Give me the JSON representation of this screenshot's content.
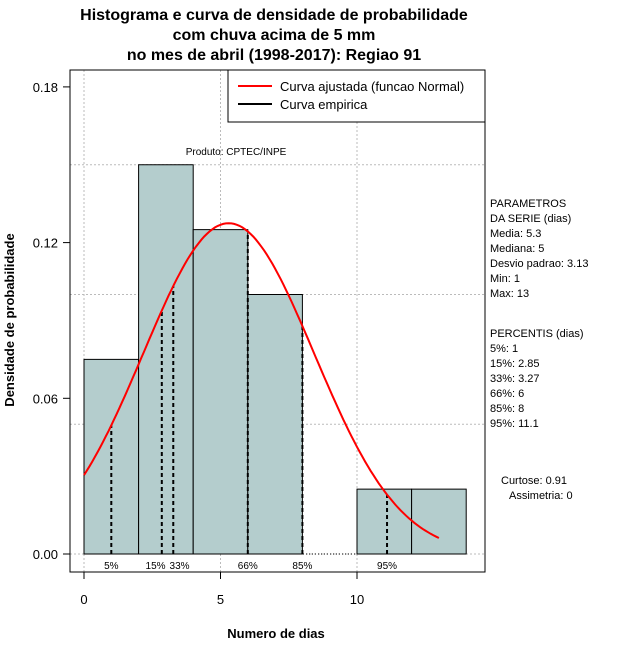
{
  "chart_data": {
    "type": "bar",
    "title": [
      "Histograma e curva de densidade de probabilidade",
      "com chuva acima de 5 mm",
      "no mes de abril (1998-2017): Regiao 91"
    ],
    "xlabel": "Numero de dias",
    "ylabel": "Densidade de probabilidade",
    "xlim": [
      -0.5,
      14.7
    ],
    "ylim": [
      -0.008,
      0.183
    ],
    "xticks": [
      0,
      5,
      10
    ],
    "yticks": [
      0.0,
      0.06,
      0.12,
      0.18
    ],
    "ytick_labels": [
      "0.00",
      "0.06",
      "0.12",
      "0.18"
    ],
    "xgrid": [
      0,
      5,
      10,
      15
    ],
    "ygrid": [
      0,
      0.05,
      0.1,
      0.15
    ],
    "bins": [
      [
        0,
        2,
        0.075
      ],
      [
        2,
        4,
        0.15
      ],
      [
        4,
        6,
        0.125
      ],
      [
        6,
        8,
        0.1
      ],
      [
        8,
        10,
        0
      ],
      [
        10,
        12,
        0.025
      ],
      [
        12,
        14,
        0.025
      ]
    ],
    "bar_color": "#b4cdcd",
    "normal_curve": {
      "mean": 5.3,
      "sd": 3.13,
      "from": 0,
      "to": 13,
      "color": "#ff0000"
    },
    "percentiles": [
      {
        "label": "5%",
        "value": 1
      },
      {
        "label": "15%",
        "value": 2.85
      },
      {
        "label": "33%",
        "value": 3.27
      },
      {
        "label": "66%",
        "value": 6
      },
      {
        "label": "85%",
        "value": 8
      },
      {
        "label": "95%",
        "value": 11.1
      }
    ],
    "legend": [
      "Curva ajustada (funcao Normal)",
      "Curva empirica"
    ],
    "legend_position": "top-right",
    "product": "Produto: CPTEC/INPE",
    "params": [
      "PARAMETROS",
      "DA SERIE (dias)",
      "  Media: 5.3",
      "  Mediana: 5",
      "  Desvio padrao: 3.13",
      "  Min: 1",
      "  Max: 13"
    ],
    "percentis_text": [
      "PERCENTIS (dias)",
      "  5%: 1",
      "  15%: 2.85",
      "  33%: 3.27",
      "  66%: 6",
      "  85%: 8",
      "  95%: 11.1"
    ],
    "stats": [
      "Curtose: 0.91",
      "Assimetria: 0"
    ]
  }
}
